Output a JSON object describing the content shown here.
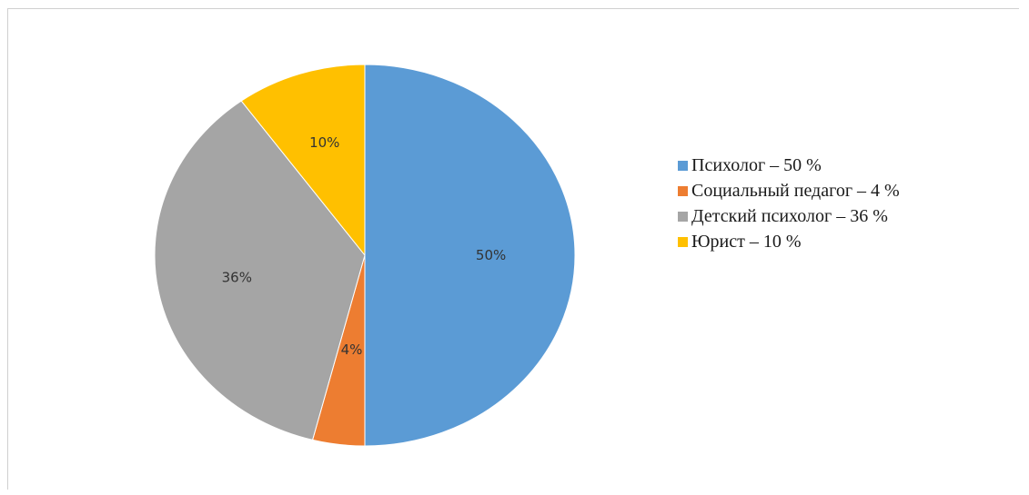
{
  "chart_data": {
    "type": "pie",
    "start_angle_deg": 0,
    "direction": "clockwise",
    "slices": [
      {
        "name": "Психолог – 50 %",
        "value": 50,
        "label": "50%",
        "color": "#5b9bd5"
      },
      {
        "name": "Социальный педагог – 4 %",
        "value": 4,
        "label": "4%",
        "color": "#ed7d31"
      },
      {
        "name": "Детский психолог – 36 %",
        "value": 36,
        "label": "36%",
        "color": "#a5a5a5"
      },
      {
        "name": "Юрист – 10 %",
        "value": 10,
        "label": "10%",
        "color": "#ffc000"
      }
    ],
    "legend_position": "right"
  }
}
